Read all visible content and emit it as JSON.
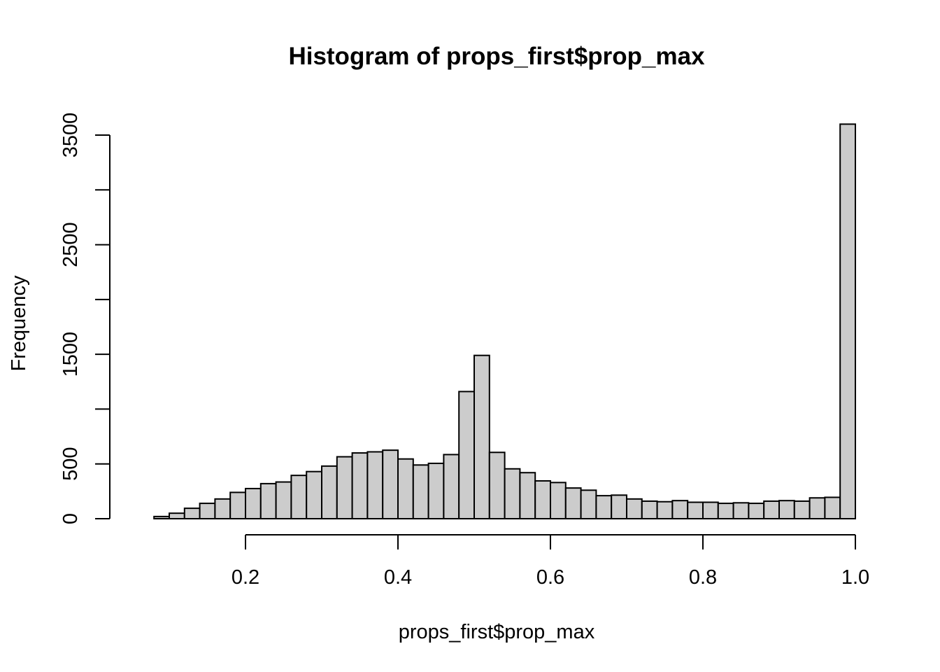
{
  "chart_data": {
    "type": "bar",
    "title": "Histogram of props_first$prop_max",
    "xlabel": "props_first$prop_max",
    "ylabel": "Frequency",
    "bin_width": 0.02,
    "bin_start": 0.06,
    "values": [
      0,
      20,
      50,
      95,
      140,
      180,
      240,
      275,
      320,
      335,
      395,
      430,
      480,
      565,
      600,
      610,
      625,
      545,
      490,
      505,
      585,
      1160,
      1490,
      605,
      455,
      420,
      345,
      330,
      280,
      260,
      210,
      215,
      180,
      160,
      155,
      165,
      150,
      150,
      140,
      145,
      140,
      160,
      165,
      160,
      190,
      195,
      3600
    ],
    "xlim": [
      0.06,
      1.0
    ],
    "ylim": [
      0,
      3600
    ],
    "x_ticks": [
      0.2,
      0.4,
      0.6,
      0.8,
      1.0
    ],
    "x_tick_labels": [
      "0.2",
      "0.4",
      "0.6",
      "0.8",
      "1.0"
    ],
    "y_ticks": [
      0,
      500,
      1000,
      1500,
      2000,
      2500,
      3000,
      3500
    ],
    "y_tick_labels": [
      "0",
      "500",
      "",
      "1500",
      "",
      "2500",
      "",
      "3500"
    ],
    "bar_color": "#cccccc",
    "border_color": "#000000",
    "grid": false
  }
}
